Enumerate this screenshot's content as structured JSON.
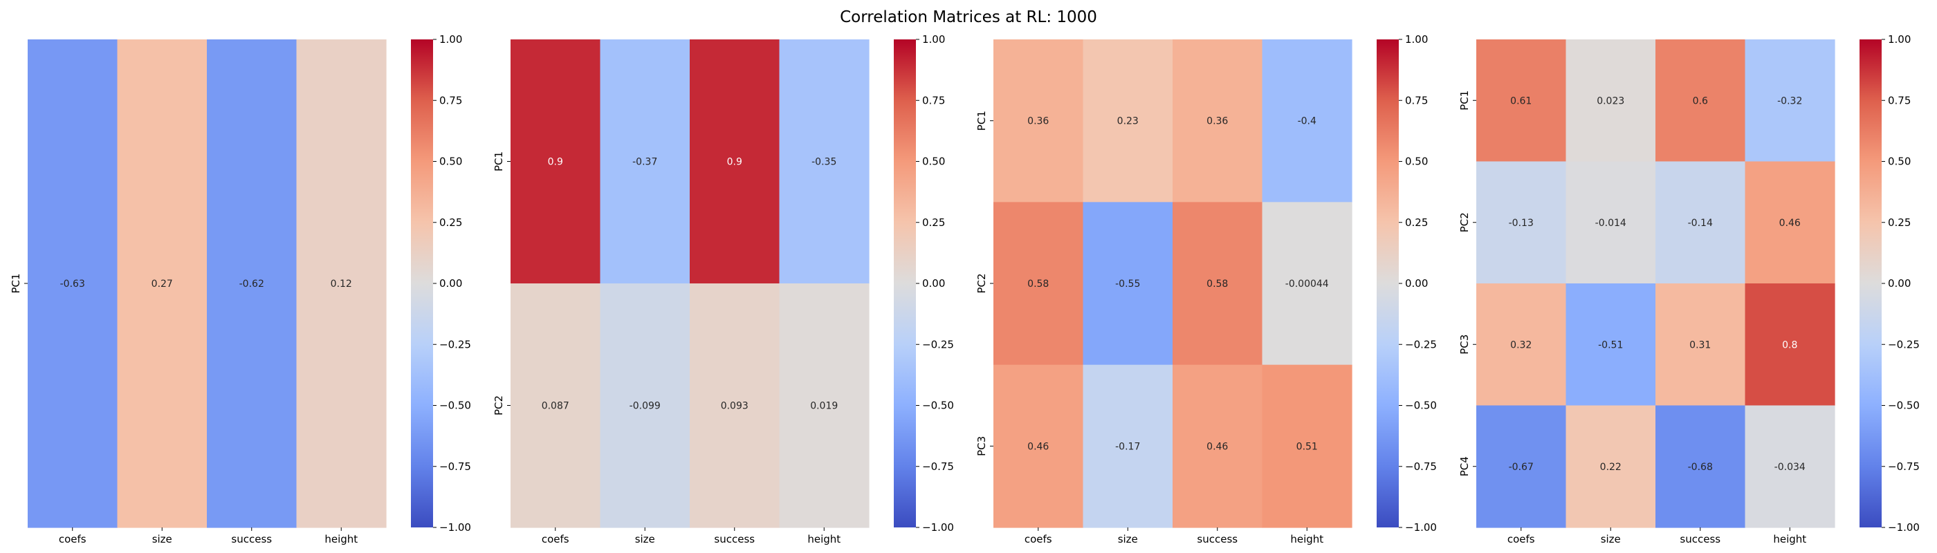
{
  "figure": {
    "title": "Correlation Matrices at RL: 1000"
  },
  "colorbar": {
    "vmin": -1.0,
    "vmax": 1.0,
    "ticks": [
      "1.00",
      "0.75",
      "0.50",
      "0.25",
      "0.00",
      "−0.25",
      "−0.50",
      "−0.75",
      "−1.00"
    ]
  },
  "chart_data": [
    {
      "type": "heatmap",
      "colormap": "coolwarm",
      "x_labels": [
        "coefs",
        "size",
        "success",
        "height"
      ],
      "y_labels": [
        "PC1"
      ],
      "values": [
        [
          -0.63,
          0.27,
          -0.62,
          0.12
        ]
      ],
      "annotations": [
        [
          "-0.63",
          "0.27",
          "-0.62",
          "0.12"
        ]
      ],
      "vlim": [
        -1,
        1
      ]
    },
    {
      "type": "heatmap",
      "colormap": "coolwarm",
      "x_labels": [
        "coefs",
        "size",
        "success",
        "height"
      ],
      "y_labels": [
        "PC1",
        "PC2"
      ],
      "values": [
        [
          0.9,
          -0.37,
          0.9,
          -0.35
        ],
        [
          0.087,
          -0.099,
          0.093,
          0.019
        ]
      ],
      "annotations": [
        [
          "0.9",
          "-0.37",
          "0.9",
          "-0.35"
        ],
        [
          "0.087",
          "-0.099",
          "0.093",
          "0.019"
        ]
      ],
      "vlim": [
        -1,
        1
      ]
    },
    {
      "type": "heatmap",
      "colormap": "coolwarm",
      "x_labels": [
        "coefs",
        "size",
        "success",
        "height"
      ],
      "y_labels": [
        "PC1",
        "PC2",
        "PC3"
      ],
      "values": [
        [
          0.36,
          0.23,
          0.36,
          -0.4
        ],
        [
          0.58,
          -0.55,
          0.58,
          -0.00044
        ],
        [
          0.46,
          -0.17,
          0.46,
          0.51
        ]
      ],
      "annotations": [
        [
          "0.36",
          "0.23",
          "0.36",
          "-0.4"
        ],
        [
          "0.58",
          "-0.55",
          "0.58",
          "-0.00044"
        ],
        [
          "0.46",
          "-0.17",
          "0.46",
          "0.51"
        ]
      ],
      "vlim": [
        -1,
        1
      ]
    },
    {
      "type": "heatmap",
      "colormap": "coolwarm",
      "x_labels": [
        "coefs",
        "size",
        "success",
        "height"
      ],
      "y_labels": [
        "PC1",
        "PC2",
        "PC3",
        "PC4"
      ],
      "values": [
        [
          0.61,
          0.023,
          0.6,
          -0.32
        ],
        [
          -0.13,
          -0.014,
          -0.14,
          0.46
        ],
        [
          0.32,
          -0.51,
          0.31,
          0.8
        ],
        [
          -0.67,
          0.22,
          -0.68,
          -0.034
        ]
      ],
      "annotations": [
        [
          "0.61",
          "0.023",
          "0.6",
          "-0.32"
        ],
        [
          "-0.13",
          "-0.014",
          "-0.14",
          "0.46"
        ],
        [
          "0.32",
          "-0.51",
          "0.31",
          "0.8"
        ],
        [
          "-0.67",
          "0.22",
          "-0.68",
          "-0.034"
        ]
      ],
      "vlim": [
        -1,
        1
      ]
    }
  ]
}
